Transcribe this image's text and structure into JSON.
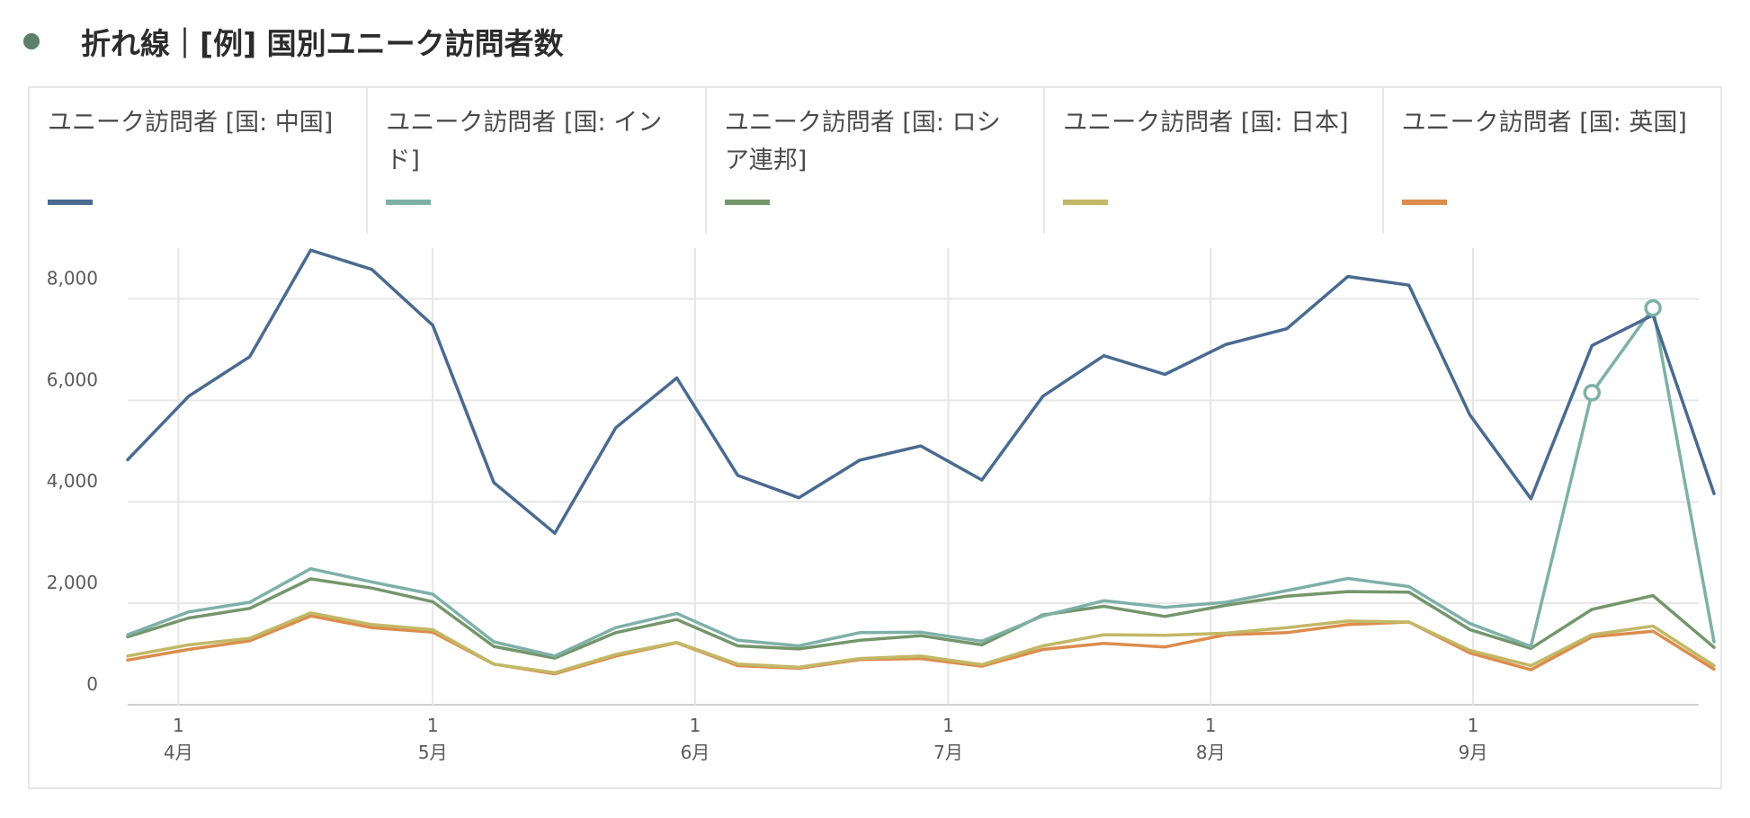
{
  "header": {
    "title": "折れ線｜[例] 国別ユニーク訪問者数"
  },
  "colors": {
    "header_dot": "#5b7f68"
  },
  "legend": [
    {
      "label": "ユニーク訪問者 [国: 中国]",
      "color": "#4a6a90"
    },
    {
      "label": "ユニーク訪問者 [国: インド]",
      "color": "#7eb0a8"
    },
    {
      "label": "ユニーク訪問者 [国: ロシア連邦]",
      "color": "#74966b"
    },
    {
      "label": "ユニーク訪問者 [国: 日本]",
      "color": "#c2b866"
    },
    {
      "label": "ユニーク訪問者 [国: 英国]",
      "color": "#dc8c4c"
    }
  ],
  "chart_data": {
    "type": "line",
    "title": "折れ線｜[例] 国別ユニーク訪問者数",
    "xlabel": "",
    "ylabel": "",
    "ylim": [
      0,
      9000
    ],
    "y_ticks": [
      {
        "value": 0,
        "label": "0"
      },
      {
        "value": 2000,
        "label": "2,000"
      },
      {
        "value": 4000,
        "label": "4,000"
      },
      {
        "value": 6000,
        "label": "6,000"
      },
      {
        "value": 8000,
        "label": "8,000"
      }
    ],
    "x_ticks": [
      {
        "week": 0.83,
        "day": "1",
        "month": "4月"
      },
      {
        "week": 5.0,
        "day": "1",
        "month": "5月"
      },
      {
        "week": 9.3,
        "day": "1",
        "month": "6月"
      },
      {
        "week": 13.45,
        "day": "1",
        "month": "7月"
      },
      {
        "week": 17.75,
        "day": "1",
        "month": "8月"
      },
      {
        "week": 22.05,
        "day": "1",
        "month": "9月"
      }
    ],
    "x_range": [
      0,
      25.75
    ],
    "grid": true,
    "series": [
      {
        "name": "ユニーク訪問者 [国: 中国]",
        "color": "#4a6a90",
        "values": [
          4830,
          6080,
          6860,
          8960,
          8580,
          7480,
          4380,
          3380,
          5460,
          6440,
          4520,
          4080,
          4820,
          5100,
          4430,
          6080,
          6880,
          6510,
          7100,
          7410,
          8440,
          8270,
          5710,
          4060,
          7080,
          7680,
          4160
        ],
        "markers": []
      },
      {
        "name": "ユニーク訪問者 [国: インド]",
        "color": "#7eb0a8",
        "values": [
          1380,
          1830,
          2020,
          2680,
          2420,
          2180,
          1240,
          960,
          1520,
          1800,
          1270,
          1160,
          1420,
          1430,
          1250,
          1750,
          2050,
          1920,
          2020,
          2250,
          2490,
          2330,
          1600,
          1150,
          6150,
          7820,
          1240
        ],
        "markers": [
          24,
          25
        ]
      },
      {
        "name": "ユニーク訪問者 [国: ロシア連邦]",
        "color": "#74966b",
        "values": [
          1340,
          1710,
          1900,
          2480,
          2300,
          2030,
          1150,
          920,
          1420,
          1680,
          1160,
          1100,
          1270,
          1360,
          1180,
          1770,
          1940,
          1740,
          1960,
          2140,
          2230,
          2220,
          1480,
          1110,
          1880,
          2150,
          1130
        ],
        "markers": []
      },
      {
        "name": "ユニーク訪問者 [国: 日本]",
        "color": "#c2b866",
        "values": [
          960,
          1180,
          1310,
          1810,
          1580,
          1480,
          800,
          630,
          990,
          1230,
          800,
          740,
          910,
          960,
          790,
          1160,
          1380,
          1370,
          1410,
          1520,
          1650,
          1630,
          1070,
          770,
          1380,
          1550,
          770
        ],
        "markers": []
      },
      {
        "name": "ユニーク訪問者 [国: 英国]",
        "color": "#dc8c4c",
        "values": [
          880,
          1090,
          1260,
          1750,
          1520,
          1430,
          800,
          610,
          960,
          1220,
          770,
          720,
          890,
          910,
          760,
          1090,
          1210,
          1140,
          1380,
          1420,
          1580,
          1630,
          1020,
          690,
          1340,
          1450,
          700
        ],
        "markers": []
      }
    ]
  }
}
